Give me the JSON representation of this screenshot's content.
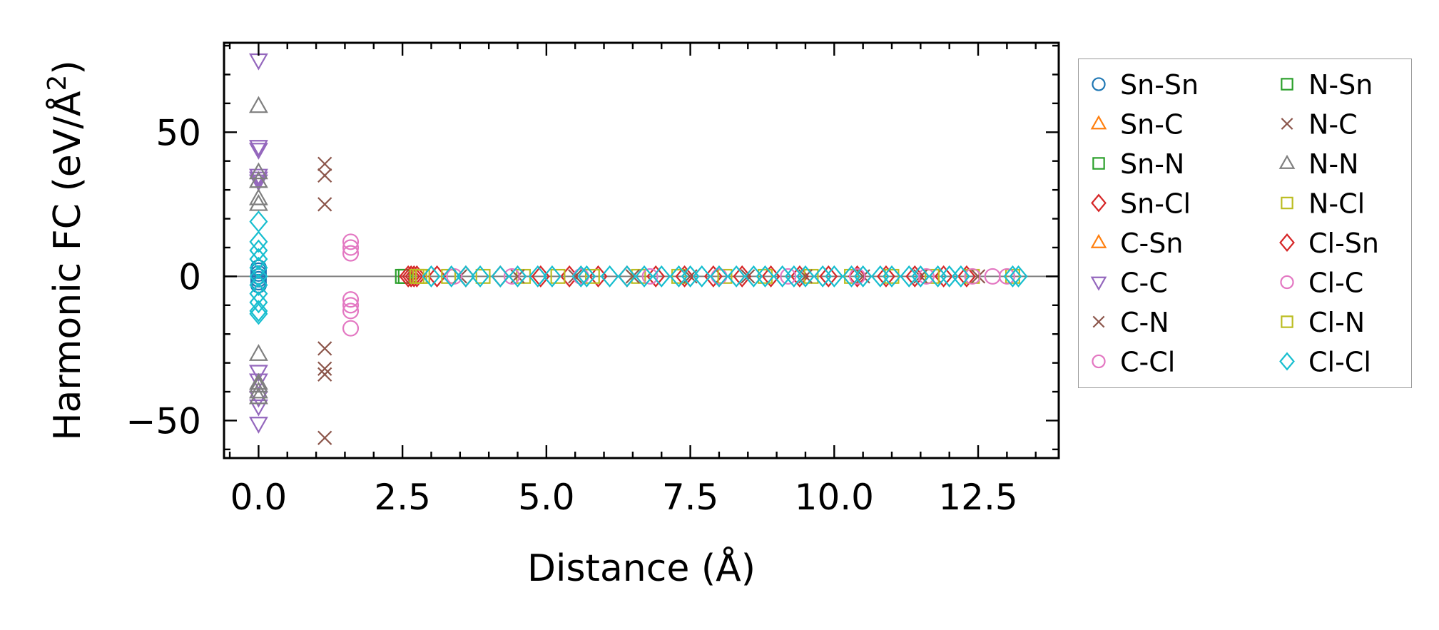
{
  "chart_data": {
    "type": "scatter",
    "xlabel": "Distance (Å)",
    "ylabel_main": "Harmonic FC (eV/Å",
    "ylabel_sup": "2",
    "ylabel_close": ")",
    "xlim": [
      -0.6,
      13.9
    ],
    "ylim": [
      -63,
      81
    ],
    "xticks": [
      0.0,
      2.5,
      5.0,
      7.5,
      10.0,
      12.5
    ],
    "xtick_labels": [
      "0.0",
      "2.5",
      "5.0",
      "7.5",
      "10.0",
      "12.5"
    ],
    "yticks": [
      -50,
      0,
      50
    ],
    "ytick_labels": [
      "−50",
      "0",
      "50"
    ],
    "zero_line": 0,
    "legend": {
      "placement": "outside-right",
      "columns": 2,
      "entries": [
        {
          "label": "Sn-Sn",
          "marker": "circle",
          "color": "#1f77b4"
        },
        {
          "label": "Sn-C",
          "marker": "triangle-up",
          "color": "#ff7f0e"
        },
        {
          "label": "Sn-N",
          "marker": "square",
          "color": "#2ca02c"
        },
        {
          "label": "Sn-Cl",
          "marker": "diamond",
          "color": "#d62728"
        },
        {
          "label": "C-Sn",
          "marker": "triangle-up",
          "color": "#ff7f0e"
        },
        {
          "label": "C-C",
          "marker": "triangle-down",
          "color": "#9467bd"
        },
        {
          "label": "C-N",
          "marker": "x",
          "color": "#8c564b"
        },
        {
          "label": "C-Cl",
          "marker": "circle",
          "color": "#e377c2"
        },
        {
          "label": "N-Sn",
          "marker": "square",
          "color": "#2ca02c"
        },
        {
          "label": "N-C",
          "marker": "x",
          "color": "#8c564b"
        },
        {
          "label": "N-N",
          "marker": "triangle-up",
          "color": "#7f7f7f"
        },
        {
          "label": "N-Cl",
          "marker": "square",
          "color": "#bcbd22"
        },
        {
          "label": "Cl-Sn",
          "marker": "diamond",
          "color": "#d62728"
        },
        {
          "label": "Cl-C",
          "marker": "circle",
          "color": "#e377c2"
        },
        {
          "label": "Cl-N",
          "marker": "square",
          "color": "#bcbd22"
        },
        {
          "label": "Cl-Cl",
          "marker": "diamond",
          "color": "#17becf"
        }
      ]
    },
    "series": [
      {
        "name": "C-C",
        "marker": "triangle-down",
        "color": "#9467bd",
        "x": [
          0,
          0,
          0,
          0,
          0,
          0,
          0,
          0,
          0,
          0,
          0
        ],
        "y": [
          75,
          45,
          44,
          35,
          34,
          33,
          -33,
          -36,
          -42,
          -45,
          -51
        ]
      },
      {
        "name": "N-N",
        "marker": "triangle-up",
        "color": "#7f7f7f",
        "x": [
          0,
          0,
          0,
          0,
          0,
          0,
          0,
          0,
          0,
          0
        ],
        "y": [
          59,
          36,
          33,
          27,
          25,
          -27,
          -37,
          -38,
          -40,
          -42
        ]
      },
      {
        "name": "C-N",
        "marker": "x",
        "color": "#8c564b",
        "x": [
          1.15,
          1.15,
          1.15,
          1.15,
          1.15,
          1.15,
          1.15
        ],
        "y": [
          39,
          35,
          25,
          -25,
          -32,
          -34,
          -56
        ]
      },
      {
        "name": "C-Cl",
        "marker": "circle",
        "color": "#e377c2",
        "x": [
          1.6,
          1.6,
          1.6,
          1.6,
          1.6,
          1.6,
          1.6
        ],
        "y": [
          12,
          10,
          8,
          -8,
          -10,
          -12,
          -18
        ]
      },
      {
        "name": "Sn-Sn",
        "marker": "circle",
        "color": "#1f77b4",
        "x": [
          0,
          0,
          0,
          0,
          0,
          0,
          0
        ],
        "y": [
          3,
          2,
          1,
          0,
          -1,
          -2,
          -3
        ]
      },
      {
        "name": "Cl-Cl",
        "marker": "diamond",
        "color": "#17becf",
        "x": [
          0,
          0,
          0,
          0,
          0,
          0,
          0,
          0,
          0,
          0,
          0
        ],
        "y": [
          19,
          12,
          9,
          6,
          3,
          0,
          -3,
          -6,
          -9,
          -12,
          -13
        ]
      },
      {
        "name": "Sn-N",
        "marker": "square",
        "color": "#2ca02c",
        "x": [
          2.5,
          2.55
        ],
        "y": [
          0,
          0
        ]
      },
      {
        "name": "Sn-Cl",
        "marker": "diamond",
        "color": "#d62728",
        "x": [
          2.6,
          2.65,
          2.7,
          2.75,
          3.1,
          3.6,
          4.2,
          4.9,
          5.4,
          5.9,
          6.4,
          6.9,
          7.4,
          7.9,
          8.4,
          8.9,
          9.4,
          9.9,
          10.4,
          10.9,
          11.4,
          11.9,
          12.3
        ],
        "y": [
          0,
          0,
          0,
          0,
          0,
          0,
          0,
          0,
          0,
          0,
          0,
          0,
          0,
          0,
          0,
          0,
          0,
          0,
          0,
          0,
          0,
          0,
          0
        ]
      },
      {
        "name": "N-Cl",
        "marker": "square",
        "color": "#bcbd22",
        "x": [
          2.75,
          2.8,
          2.85,
          3.3,
          3.9,
          4.6,
          5.2,
          5.8,
          6.6,
          7.3,
          8.1,
          8.8,
          9.6,
          10.3,
          11.0,
          11.7,
          12.4,
          13.1
        ],
        "y": [
          0,
          0,
          0,
          0,
          0,
          0,
          0,
          0,
          0,
          0,
          0,
          0,
          0,
          0,
          0,
          0,
          0,
          0
        ]
      },
      {
        "name": "N-C",
        "marker": "x",
        "color": "#8c564b",
        "x": [
          3.5,
          4.5,
          5.5,
          6.5,
          7.5,
          8.5,
          9.5,
          10.5,
          11.5,
          12.5
        ],
        "y": [
          0,
          0,
          0,
          0,
          0,
          0,
          0,
          0,
          0,
          0
        ]
      },
      {
        "name": "Cl-C",
        "marker": "circle",
        "color": "#e377c2",
        "x": [
          3.4,
          4.4,
          5.6,
          6.8,
          8.0,
          9.2,
          10.4,
          11.6,
          12.4,
          12.75,
          13.0
        ],
        "y": [
          0,
          0,
          0,
          0,
          0,
          0,
          0,
          0,
          0,
          0,
          0
        ]
      },
      {
        "name": "Cl-Cl",
        "marker": "diamond",
        "color": "#17becf",
        "x": [
          3.0,
          3.35,
          3.6,
          3.85,
          4.2,
          4.5,
          4.85,
          5.1,
          5.6,
          5.7,
          6.1,
          6.4,
          6.7,
          7.0,
          7.3,
          7.5,
          7.7,
          8.0,
          8.3,
          8.6,
          8.8,
          9.1,
          9.3,
          9.5,
          9.8,
          10.0,
          10.3,
          10.5,
          10.8,
          11.0,
          11.3,
          11.5,
          11.8,
          12.0,
          12.2,
          13.1,
          13.2
        ],
        "y": [
          0,
          0,
          0,
          0,
          0,
          0,
          0,
          0,
          0,
          0,
          0,
          0,
          0,
          0,
          0,
          0,
          0,
          0,
          0,
          0,
          0,
          0,
          0,
          0,
          0,
          0,
          0,
          0,
          0,
          0,
          0,
          0,
          0,
          0,
          0,
          0,
          0
        ]
      }
    ]
  }
}
